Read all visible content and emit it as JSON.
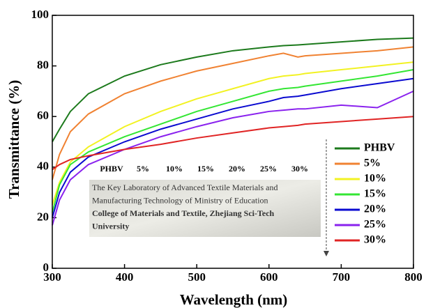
{
  "chart_data": {
    "type": "line",
    "xlabel": "Wavelength (nm)",
    "ylabel": "Transmittance (%)",
    "x": [
      300,
      310,
      325,
      350,
      400,
      450,
      500,
      550,
      600,
      620,
      640,
      650,
      700,
      750,
      800
    ],
    "xlim": [
      300,
      800
    ],
    "xticks": [
      300,
      400,
      500,
      600,
      700,
      800
    ],
    "ylim": [
      0,
      100
    ],
    "yticks": [
      0,
      20,
      40,
      60,
      80,
      100
    ],
    "legend": "right",
    "series": [
      {
        "name": "PHBV",
        "color": "#1c7a1c",
        "values": [
          50,
          55,
          62,
          69,
          76,
          80.5,
          83.5,
          86,
          87.5,
          88,
          88.3,
          88.5,
          89.5,
          90.5,
          91
        ]
      },
      {
        "name": "5%",
        "color": "#f08232",
        "values": [
          35,
          45,
          54,
          61,
          69,
          74,
          78,
          81,
          84,
          85,
          83.5,
          84,
          85,
          86,
          87.5
        ]
      },
      {
        "name": "10%",
        "color": "#f2f222",
        "values": [
          25,
          34,
          42,
          48,
          56,
          62,
          67,
          71,
          75,
          76,
          76.5,
          77,
          78.5,
          80,
          81.5
        ]
      },
      {
        "name": "15%",
        "color": "#33e633",
        "values": [
          22,
          33,
          41,
          46,
          52,
          57,
          62,
          66,
          70,
          71,
          71.5,
          72,
          74,
          76,
          78.5
        ]
      },
      {
        "name": "20%",
        "color": "#0a0ad0",
        "values": [
          20,
          30,
          38,
          44,
          50,
          55,
          59,
          63,
          66,
          67.5,
          68,
          68.5,
          71,
          73,
          75
        ]
      },
      {
        "name": "25%",
        "color": "#8a22ee",
        "values": [
          17,
          27,
          35,
          41,
          47,
          52,
          56,
          59.5,
          62,
          62.5,
          63,
          63,
          64.5,
          63.5,
          70
        ]
      },
      {
        "name": "30%",
        "color": "#e02424",
        "values": [
          39,
          41,
          43,
          44.5,
          47,
          49,
          51.5,
          53.5,
          55.5,
          56,
          56.5,
          57,
          58,
          59,
          60
        ]
      }
    ],
    "inset": {
      "labels": [
        "PHBV",
        "5%",
        "10%",
        "15%",
        "20%",
        "25%",
        "30%"
      ],
      "lines": [
        "The Key Laboratory of Advanced Textile Materials and",
        "Manufacturing Technology of Ministry of Education",
        "College of Materials and Textile, Zhejiang Sci-Tech",
        "University"
      ]
    }
  }
}
